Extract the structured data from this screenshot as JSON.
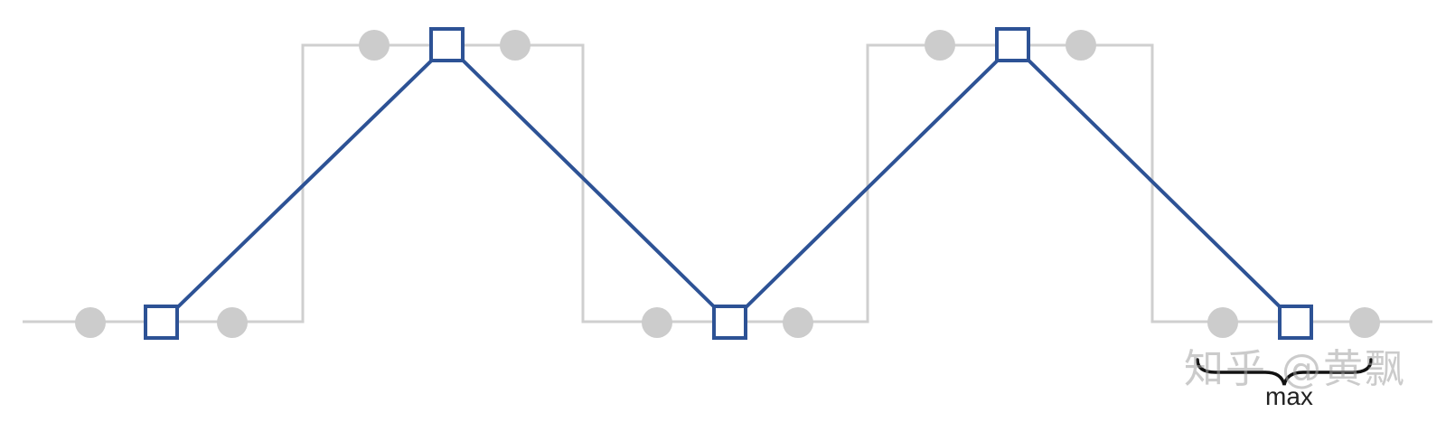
{
  "colors": {
    "square_wave": "#cfcfcf",
    "dots": "#cccccc",
    "triangle_wave": "#2d5295",
    "markers_stroke": "#2d5295",
    "markers_fill": "#ffffff",
    "brace": "#111111",
    "label": "#222222"
  },
  "labels": {
    "max": "max"
  },
  "watermark": {
    "text": "知乎 @黄飘"
  }
}
